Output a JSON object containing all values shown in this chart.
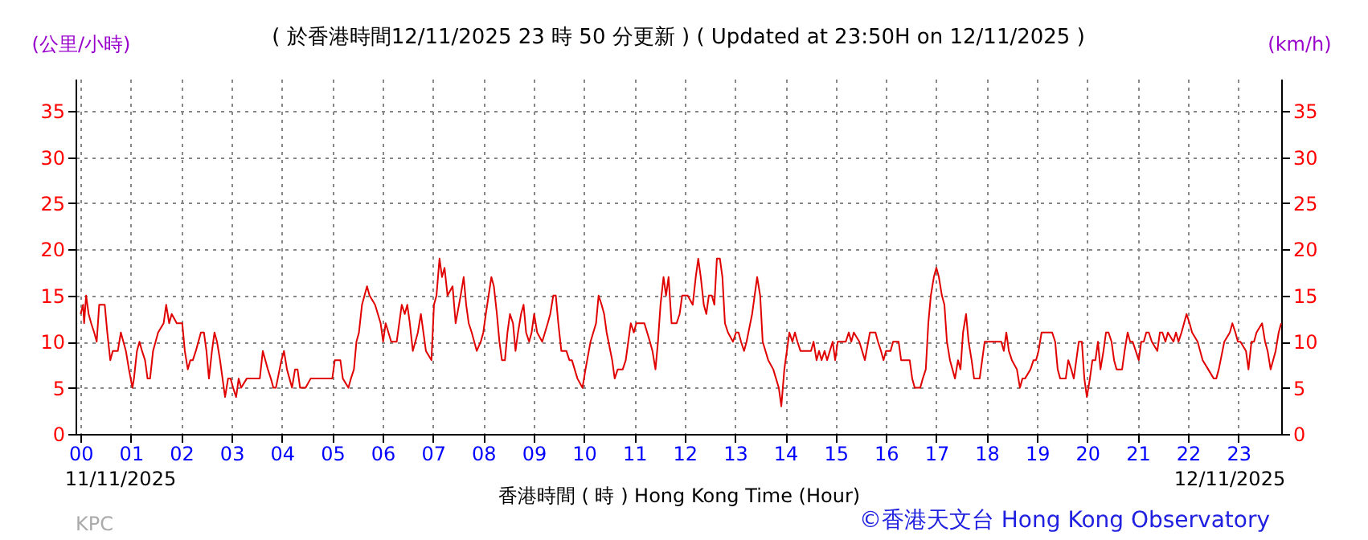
{
  "chart_data": {
    "type": "line",
    "title": "( 於香港時間12/11/2025 23 時 50 分更新 ) ( Updated at 23:50H on 12/11/2025 )",
    "xlabel": "香港時間 ( 時 ) Hong Kong Time (Hour)",
    "ylabel": "(公里/小時)",
    "y2label": "(km/h)",
    "annotations": [
      "11/11/2025",
      "12/11/2025",
      "KPC",
      "©香港天文台 Hong Kong Observatory"
    ],
    "x": [
      0,
      0.05,
      0.07,
      0.11,
      0.16,
      0.21,
      0.27,
      0.32,
      0.37,
      0.48,
      0.53,
      0.59,
      0.64,
      0.74,
      0.8,
      0.85,
      0.9,
      0.96,
      1.03,
      1.06,
      1.12,
      1.17,
      1.22,
      1.28,
      1.33,
      1.38,
      1.44,
      1.54,
      1.65,
      1.7,
      1.76,
      1.81,
      1.91,
      2.02,
      2.07,
      2.13,
      2.18,
      2.23,
      2.29,
      2.39,
      2.45,
      2.5,
      2.55,
      2.61,
      2.66,
      2.71,
      2.77,
      2.82,
      2.87,
      2.93,
      2.98,
      3.03,
      3.09,
      3.14,
      3.19,
      3.3,
      3.56,
      3.62,
      3.67,
      3.72,
      3.78,
      3.83,
      3.88,
      3.99,
      4.04,
      4.1,
      4.15,
      4.2,
      4.26,
      4.31,
      4.36,
      4.47,
      4.57,
      5.0,
      5.05,
      5.16,
      5.21,
      5.32,
      5.37,
      5.43,
      5.48,
      5.53,
      5.59,
      5.69,
      5.74,
      5.85,
      5.96,
      6.01,
      6.06,
      6.17,
      6.28,
      6.33,
      6.38,
      6.44,
      6.49,
      6.54,
      6.6,
      6.65,
      6.7,
      6.76,
      6.81,
      6.86,
      6.97,
      7.02,
      7.07,
      7.13,
      7.18,
      7.23,
      7.29,
      7.39,
      7.45,
      7.55,
      7.61,
      7.66,
      7.71,
      7.77,
      7.87,
      7.95,
      8.0,
      8.05,
      8.16,
      8.21,
      8.27,
      8.32,
      8.37,
      8.43,
      8.48,
      8.53,
      8.59,
      8.64,
      8.69,
      8.75,
      8.8,
      8.85,
      8.91,
      8.96,
      9.01,
      9.07,
      9.17,
      9.28,
      9.33,
      9.39,
      9.44,
      9.49,
      9.55,
      9.65,
      9.71,
      9.76,
      9.87,
      9.97,
      10.03,
      10.13,
      10.24,
      10.29,
      10.35,
      10.4,
      10.45,
      10.56,
      10.61,
      10.67,
      10.77,
      10.83,
      10.88,
      10.93,
      10.99,
      11.04,
      11.09,
      11.15,
      11.2,
      11.31,
      11.36,
      11.42,
      11.47,
      11.52,
      11.58,
      11.63,
      11.68,
      11.74,
      11.84,
      11.9,
      11.95,
      12.06,
      12.16,
      12.22,
      12.27,
      12.32,
      12.38,
      12.43,
      12.48,
      12.54,
      12.59,
      12.64,
      12.7,
      12.75,
      12.8,
      12.86,
      12.96,
      13.02,
      13.07,
      13.12,
      13.18,
      13.23,
      13.34,
      13.44,
      13.5,
      13.55,
      13.66,
      13.76,
      13.87,
      13.92,
      13.98,
      14.03,
      14.08,
      14.14,
      14.19,
      14.24,
      14.3,
      14.51,
      14.56,
      14.62,
      14.67,
      14.72,
      14.78,
      14.83,
      14.94,
      14.99,
      15.04,
      15.1,
      15.2,
      15.26,
      15.31,
      15.36,
      15.47,
      15.58,
      15.68,
      15.79,
      15.84,
      15.9,
      15.95,
      16.0,
      16.09,
      16.14,
      16.25,
      16.3,
      16.36,
      16.47,
      16.52,
      16.57,
      16.68,
      16.73,
      16.79,
      16.84,
      16.89,
      16.95,
      17.0,
      17.05,
      17.11,
      17.16,
      17.21,
      17.27,
      17.32,
      17.37,
      17.43,
      17.48,
      17.53,
      17.59,
      17.64,
      17.7,
      17.75,
      17.86,
      17.91,
      17.96,
      18.07,
      18.29,
      18.34,
      18.39,
      18.44,
      18.5,
      18.6,
      18.66,
      18.71,
      18.76,
      18.87,
      18.93,
      18.98,
      19.03,
      19.09,
      19.14,
      19.2,
      19.3,
      19.36,
      19.41,
      19.46,
      19.57,
      19.62,
      19.68,
      19.73,
      19.78,
      19.83,
      19.89,
      19.94,
      19.99,
      20.05,
      20.1,
      20.16,
      20.21,
      20.26,
      20.32,
      20.37,
      20.42,
      20.48,
      20.53,
      20.58,
      20.69,
      20.74,
      20.8,
      20.85,
      20.9,
      21.02,
      21.07,
      21.12,
      21.17,
      21.22,
      21.28,
      21.39,
      21.44,
      21.49,
      21.55,
      21.6,
      21.71,
      21.76,
      21.81,
      21.87,
      21.92,
      21.97,
      22.03,
      22.08,
      22.19,
      22.29,
      22.4,
      22.51,
      22.56,
      22.61,
      22.72,
      22.83,
      22.88,
      22.94,
      22.99,
      23.04,
      23.15,
      23.2,
      23.26,
      23.31,
      23.36,
      23.47,
      23.53,
      23.58,
      23.64,
      23.69,
      23.74,
      23.8,
      23.85
    ],
    "series": [
      {
        "color": "#e00000",
        "values": [
          13,
          14,
          12,
          15,
          13,
          12,
          11,
          10,
          14,
          14,
          11,
          8,
          9,
          9,
          11,
          10,
          9,
          7,
          5,
          6,
          9,
          10,
          9,
          8,
          6,
          6,
          9,
          11,
          12,
          14,
          12,
          13,
          12,
          12,
          9,
          7,
          8,
          8,
          9,
          11,
          11,
          9,
          6,
          9,
          11,
          10,
          8,
          6,
          4,
          6,
          6,
          5,
          4,
          6,
          5,
          6,
          6,
          9,
          8,
          7,
          6,
          5,
          5,
          8,
          9,
          7,
          6,
          5,
          7,
          7,
          5,
          5,
          6,
          6,
          8,
          8,
          6,
          5,
          6,
          7,
          10,
          11,
          14,
          16,
          15,
          14,
          12,
          10,
          12,
          10,
          10,
          12,
          14,
          13,
          14,
          12,
          9,
          10,
          11,
          13,
          11,
          9,
          8,
          14,
          15,
          19,
          17,
          18,
          15,
          16,
          12,
          15,
          17,
          14,
          12,
          11,
          9,
          10,
          11,
          13,
          17,
          16,
          13,
          10,
          8,
          8,
          11,
          13,
          12,
          9,
          11,
          13,
          14,
          11,
          10,
          11,
          13,
          11,
          10,
          12,
          13,
          15,
          15,
          12,
          9,
          9,
          8,
          8,
          6,
          5,
          7,
          10,
          12,
          15,
          14,
          13,
          11,
          8,
          6,
          7,
          7,
          8,
          10,
          12,
          11,
          12,
          12,
          12,
          12,
          10,
          9,
          7,
          10,
          14,
          17,
          15,
          17,
          12,
          12,
          13,
          15,
          15,
          14,
          17,
          19,
          17,
          14,
          13,
          15,
          15,
          14,
          19,
          19,
          17,
          12,
          11,
          10,
          11,
          11,
          10,
          9,
          10,
          13,
          17,
          15,
          10,
          8,
          7,
          5,
          3,
          7,
          9,
          11,
          10,
          11,
          10,
          9,
          9,
          10,
          8,
          9,
          8,
          9,
          8,
          10,
          8,
          10,
          10,
          10,
          11,
          10,
          11,
          10,
          8,
          11,
          11,
          10,
          9,
          8,
          9,
          9,
          10,
          10,
          8,
          8,
          8,
          6,
          5,
          5,
          6,
          7,
          12,
          15,
          17,
          18,
          17,
          15,
          14,
          10,
          8,
          7,
          6,
          8,
          7,
          11,
          13,
          10,
          8,
          6,
          6,
          8,
          10,
          10,
          10,
          9,
          11,
          9,
          8,
          7,
          5,
          6,
          6,
          7,
          8,
          8,
          9,
          11,
          11,
          11,
          11,
          10,
          7,
          6,
          6,
          8,
          7,
          6,
          8,
          10,
          10,
          6,
          4,
          6,
          8,
          8,
          10,
          7,
          9,
          11,
          11,
          10,
          8,
          7,
          7,
          9,
          11,
          10,
          10,
          8,
          10,
          10,
          11,
          11,
          10,
          9,
          11,
          11,
          10,
          11,
          10,
          11,
          10,
          11,
          12,
          13,
          12,
          11,
          10,
          8,
          7,
          6,
          6,
          7,
          10,
          11,
          12,
          11,
          10,
          10,
          9,
          7,
          10,
          10,
          11,
          12,
          10,
          9,
          7,
          8,
          9,
          11,
          12
        ]
      }
    ],
    "xlim": [
      -0.1,
      23.85
    ],
    "xticks": [
      {
        "value": 0,
        "label": "00"
      },
      {
        "value": 1,
        "label": "01"
      },
      {
        "value": 2,
        "label": "02"
      },
      {
        "value": 3,
        "label": "03"
      },
      {
        "value": 4,
        "label": "04"
      },
      {
        "value": 5,
        "label": "05"
      },
      {
        "value": 6,
        "label": "06"
      },
      {
        "value": 7,
        "label": "07"
      },
      {
        "value": 8,
        "label": "08"
      },
      {
        "value": 9,
        "label": "09"
      },
      {
        "value": 10,
        "label": "10"
      },
      {
        "value": 11,
        "label": "11"
      },
      {
        "value": 12,
        "label": "12"
      },
      {
        "value": 13,
        "label": "13"
      },
      {
        "value": 14,
        "label": "14"
      },
      {
        "value": 15,
        "label": "15"
      },
      {
        "value": 16,
        "label": "16"
      },
      {
        "value": 17,
        "label": "17"
      },
      {
        "value": 18,
        "label": "18"
      },
      {
        "value": 19,
        "label": "19"
      },
      {
        "value": 20,
        "label": "20"
      },
      {
        "value": 21,
        "label": "21"
      },
      {
        "value": 22,
        "label": "22"
      },
      {
        "value": 23,
        "label": "23"
      }
    ],
    "ylim": [
      0,
      38.5
    ],
    "yticks": [
      0,
      5,
      10,
      15,
      20,
      25,
      30,
      35
    ],
    "y2lim": [
      0,
      38.5
    ],
    "y2ticks": [
      0,
      5,
      10,
      15,
      20,
      25,
      30,
      35
    ],
    "grid": true
  }
}
